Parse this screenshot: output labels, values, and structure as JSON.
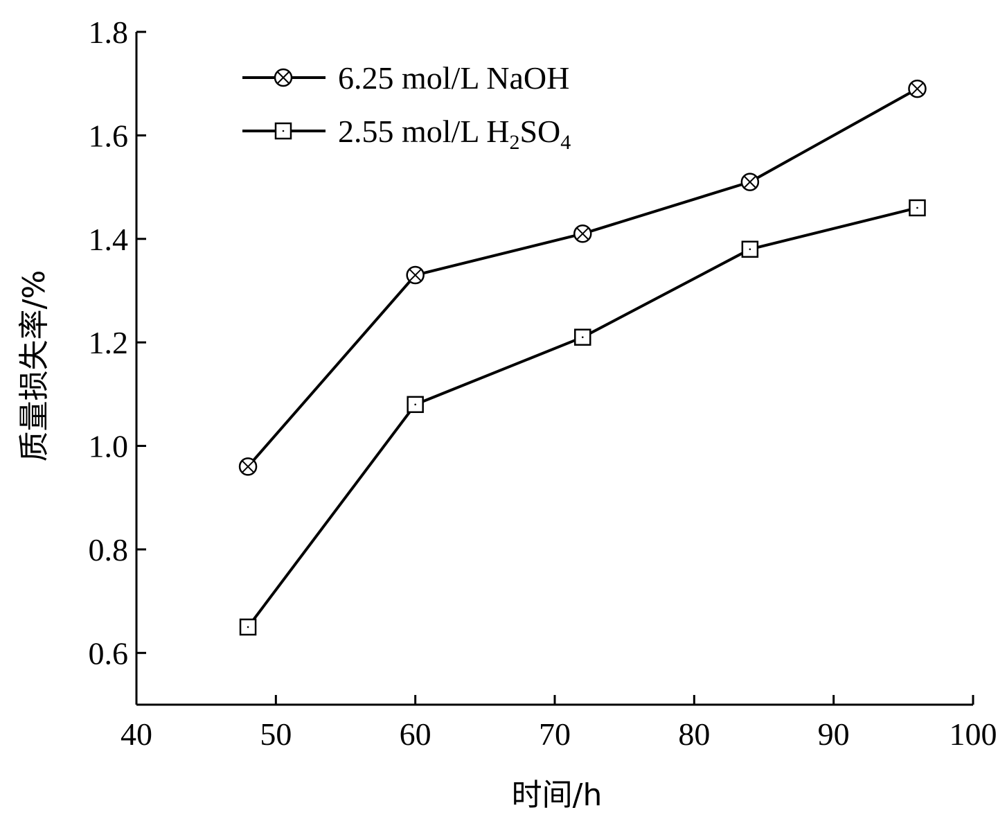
{
  "chart_data": {
    "type": "line",
    "title": "",
    "xlabel": "时间/h",
    "ylabel": "质量损失率/%",
    "xlim": [
      40,
      100
    ],
    "ylim": [
      0.5,
      1.8
    ],
    "xticks": [
      40,
      50,
      60,
      70,
      80,
      90,
      100
    ],
    "xtick_labels": [
      "40",
      "50",
      "60",
      "70",
      "80",
      "90",
      "100"
    ],
    "yticks": [
      0.6,
      0.8,
      1.0,
      1.2,
      1.4,
      1.6,
      1.8
    ],
    "ytick_labels": [
      "0.6",
      "0.8",
      "1.0",
      "1.2",
      "1.4",
      "1.6",
      "1.8"
    ],
    "grid": false,
    "legend_position": "top-left",
    "series": [
      {
        "name": "6.25 mol/L NaOH",
        "marker": "circle-x",
        "color": "#000000",
        "x": [
          48,
          60,
          72,
          84,
          96
        ],
        "y": [
          0.96,
          1.33,
          1.41,
          1.51,
          1.69
        ]
      },
      {
        "name": "2.55 mol/L H2SO4",
        "legend_parts": [
          {
            "text": "2.55 mol/L H",
            "sub": false
          },
          {
            "text": "2",
            "sub": true
          },
          {
            "text": "SO",
            "sub": false
          },
          {
            "text": "4",
            "sub": true
          }
        ],
        "marker": "square",
        "color": "#000000",
        "x": [
          48,
          60,
          72,
          84,
          96
        ],
        "y": [
          0.65,
          1.08,
          1.21,
          1.38,
          1.46
        ]
      }
    ]
  }
}
